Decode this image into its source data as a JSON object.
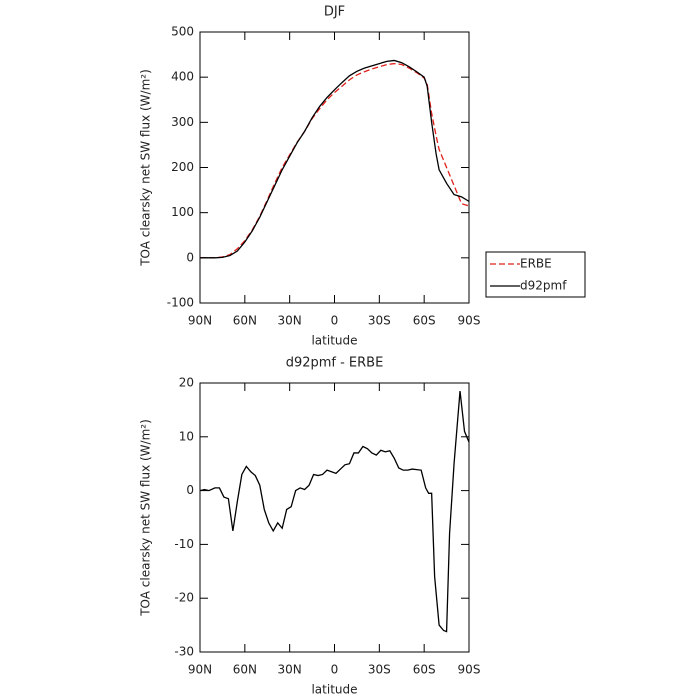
{
  "chart_data": [
    {
      "type": "line",
      "title": "DJF",
      "xlabel": "latitude",
      "ylabel": "TOA clearsky net SW flux (W/m²)",
      "x": [
        90,
        85,
        80,
        75,
        70,
        65,
        60,
        55,
        50,
        45,
        40,
        35,
        30,
        25,
        20,
        15,
        10,
        5,
        0,
        -5,
        -10,
        -15,
        -20,
        -25,
        -30,
        -35,
        -40,
        -45,
        -50,
        -55,
        -60,
        -62,
        -65,
        -68,
        -70,
        -75,
        -80,
        -85,
        -90
      ],
      "series": [
        {
          "name": "ERBE",
          "color": "#e0201b",
          "line_style": "dashed",
          "values": [
            0,
            0,
            0,
            2,
            7,
            20,
            38,
            62,
            92,
            128,
            165,
            200,
            228,
            256,
            280,
            308,
            330,
            350,
            366,
            380,
            394,
            405,
            412,
            418,
            423,
            428,
            430,
            428,
            420,
            410,
            398,
            385,
            320,
            270,
            240,
            200,
            160,
            120,
            115
          ]
        },
        {
          "name": "d92pmf",
          "color": "#000000",
          "line_style": "solid",
          "values": [
            0,
            0,
            0,
            1,
            5,
            15,
            35,
            60,
            90,
            125,
            160,
            195,
            225,
            255,
            280,
            310,
            335,
            355,
            372,
            388,
            403,
            413,
            420,
            425,
            430,
            435,
            437,
            432,
            423,
            412,
            400,
            380,
            300,
            230,
            195,
            165,
            140,
            135,
            125
          ]
        }
      ],
      "xlim": [
        90,
        -90
      ],
      "xticks": [
        {
          "value": 90,
          "label": "90N"
        },
        {
          "value": 60,
          "label": "60N"
        },
        {
          "value": 30,
          "label": "30N"
        },
        0,
        {
          "value": -30,
          "label": "30S"
        },
        {
          "value": -60,
          "label": "60S"
        },
        {
          "value": -90,
          "label": "90S"
        }
      ],
      "ylim": [
        -100,
        500
      ],
      "yticks": [
        -100,
        0,
        100,
        200,
        300,
        400,
        500
      ],
      "grid": false,
      "legend": "outside right"
    },
    {
      "type": "line",
      "title": "d92pmf - ERBE",
      "xlabel": "latitude",
      "ylabel": "TOA clearsky net SW flux (W/m²)",
      "x": [
        90,
        87,
        84,
        80,
        77,
        74,
        71,
        68,
        65,
        62,
        59,
        56,
        53,
        50,
        47,
        44,
        41,
        38,
        35,
        32,
        29,
        26,
        23,
        20,
        17,
        14,
        11,
        8,
        5,
        2,
        -1,
        -4,
        -7,
        -10,
        -13,
        -16,
        -19,
        -22,
        -25,
        -28,
        -31,
        -34,
        -37,
        -40,
        -43,
        -46,
        -49,
        -52,
        -55,
        -58,
        -61,
        -63,
        -65,
        -67,
        -70,
        -73,
        -75,
        -77,
        -80,
        -84,
        -87,
        -90
      ],
      "series": [
        {
          "color": "#000000",
          "line_style": "solid",
          "values": [
            0,
            0.2,
            0,
            0.5,
            0.5,
            -1.2,
            -1.5,
            -7.5,
            -2,
            3,
            4.5,
            3.5,
            2.8,
            1,
            -3.5,
            -6,
            -7.5,
            -6,
            -7,
            -3.5,
            -3,
            0,
            0.5,
            0.2,
            1,
            3,
            2.8,
            3,
            3.8,
            3.5,
            3.2,
            4,
            4.8,
            5,
            7,
            7,
            8.2,
            7.8,
            7,
            6.6,
            7.5,
            7.2,
            7.4,
            6,
            4.2,
            3.8,
            3.8,
            4,
            3.9,
            3.8,
            0.5,
            -0.5,
            -0.5,
            -16,
            -25,
            -26,
            -26.2,
            -8,
            5,
            18.5,
            11,
            9
          ]
        }
      ],
      "xlim": [
        90,
        -90
      ],
      "xticks": [
        {
          "value": 90,
          "label": "90N"
        },
        {
          "value": 60,
          "label": "60N"
        },
        {
          "value": 30,
          "label": "30N"
        },
        0,
        {
          "value": -30,
          "label": "30S"
        },
        {
          "value": -60,
          "label": "60S"
        },
        {
          "value": -90,
          "label": "90S"
        }
      ],
      "ylim": [
        -30,
        20
      ],
      "yticks": [
        -30,
        -20,
        -10,
        0,
        10,
        20
      ],
      "grid": false
    }
  ]
}
